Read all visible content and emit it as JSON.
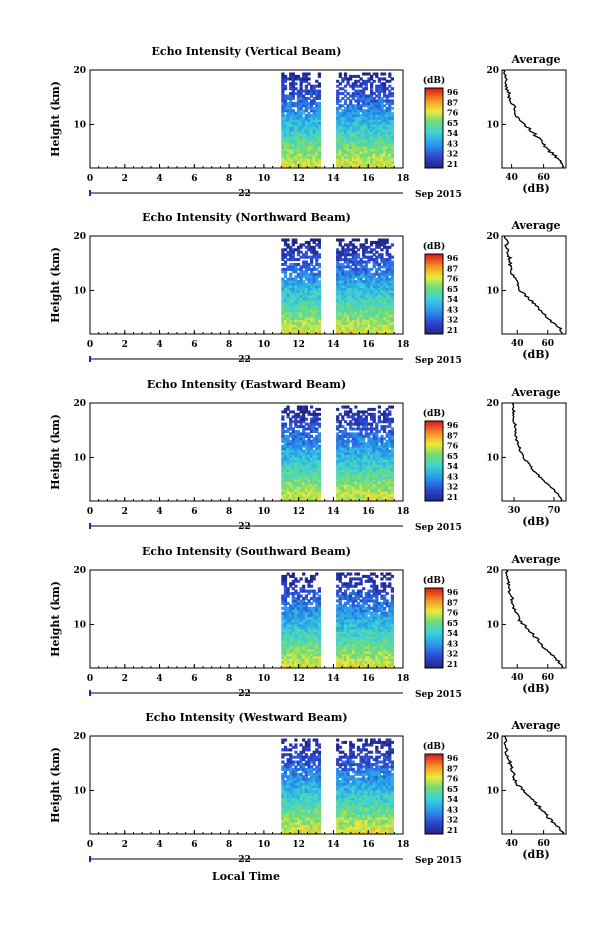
{
  "figure": {
    "xlabel": "Local Time",
    "date_label": "Sep 2015",
    "day_label": "22"
  },
  "chart_data": [
    {
      "type": "heatmap",
      "title": "Echo Intensity (Vertical Beam)",
      "ylabel": "Height (km)",
      "xlim": [
        0,
        18
      ],
      "xticks": [
        "0",
        "2",
        "4",
        "6",
        "8",
        "10",
        "12",
        "14",
        "16",
        "18"
      ],
      "ylim": [
        2,
        20
      ],
      "yticks": [
        "10",
        "20"
      ],
      "data_gaps": [
        [
          0,
          11
        ],
        [
          13.2,
          14.1
        ]
      ],
      "colorbar": {
        "unit": "(dB)",
        "labels": [
          "96",
          "87",
          "76",
          "65",
          "54",
          "43",
          "32",
          "21"
        ]
      },
      "profile": {
        "title": "Average",
        "xlabel": "(dB)",
        "xticklabels": [
          "40",
          "60"
        ],
        "xlim": [
          34,
          74
        ],
        "heights": [
          2,
          3,
          4,
          5,
          6,
          7,
          8,
          9,
          10,
          11,
          12,
          13,
          14,
          15,
          16,
          17,
          18,
          19,
          20
        ],
        "values": [
          72,
          71,
          68,
          64,
          61,
          58,
          55,
          52,
          48,
          44,
          43,
          42,
          40,
          38,
          38,
          37,
          36,
          36,
          35
        ]
      }
    },
    {
      "type": "heatmap",
      "title": "Echo Intensity (Northward Beam)",
      "ylabel": "Height (km)",
      "xlim": [
        0,
        18
      ],
      "xticks": [
        "0",
        "2",
        "4",
        "6",
        "8",
        "10",
        "12",
        "14",
        "16",
        "18"
      ],
      "ylim": [
        2,
        20
      ],
      "yticks": [
        "10",
        "20"
      ],
      "data_gaps": [
        [
          0,
          11
        ],
        [
          13.2,
          14.1
        ]
      ],
      "colorbar": {
        "unit": "(dB)",
        "labels": [
          "96",
          "87",
          "76",
          "65",
          "54",
          "43",
          "32",
          "21"
        ]
      },
      "profile": {
        "title": "Average",
        "xlabel": "(dB)",
        "xticklabels": [
          "40",
          "60"
        ],
        "xlim": [
          30,
          72
        ],
        "heights": [
          2,
          3,
          4,
          5,
          6,
          7,
          8,
          9,
          10,
          11,
          12,
          13,
          14,
          15,
          16,
          17,
          18,
          19,
          20
        ],
        "values": [
          70,
          68,
          64,
          60,
          56,
          53,
          50,
          46,
          42,
          40,
          39,
          37,
          36,
          35,
          35,
          34,
          33,
          33,
          32
        ]
      }
    },
    {
      "type": "heatmap",
      "title": "Echo Intensity (Eastward Beam)",
      "ylabel": "Height (km)",
      "xlim": [
        0,
        18
      ],
      "xticks": [
        "0",
        "2",
        "4",
        "6",
        "8",
        "10",
        "12",
        "14",
        "16",
        "18"
      ],
      "ylim": [
        2,
        20
      ],
      "yticks": [
        "10",
        "20"
      ],
      "data_gaps": [
        [
          0,
          11
        ],
        [
          13.2,
          14.1
        ]
      ],
      "colorbar": {
        "unit": "(dB)",
        "labels": [
          "96",
          "87",
          "76",
          "65",
          "54",
          "43",
          "32",
          "21"
        ]
      },
      "profile": {
        "title": "Average",
        "xlabel": "(dB)",
        "xticklabels": [
          "30",
          "70"
        ],
        "xlim": [
          18,
          82
        ],
        "heights": [
          2,
          3,
          4,
          5,
          6,
          7,
          8,
          9,
          10,
          11,
          12,
          13,
          14,
          15,
          16,
          17,
          18,
          19,
          20
        ],
        "values": [
          78,
          75,
          70,
          64,
          58,
          53,
          48,
          44,
          40,
          37,
          35,
          33,
          32,
          31,
          31,
          30,
          30,
          29,
          28
        ]
      }
    },
    {
      "type": "heatmap",
      "title": "Echo Intensity (Southward Beam)",
      "ylabel": "Height (km)",
      "xlim": [
        0,
        18
      ],
      "xticks": [
        "0",
        "2",
        "4",
        "6",
        "8",
        "10",
        "12",
        "14",
        "16",
        "18"
      ],
      "ylim": [
        2,
        20
      ],
      "yticks": [
        "10",
        "20"
      ],
      "data_gaps": [
        [
          0,
          11
        ],
        [
          13.2,
          14.1
        ]
      ],
      "colorbar": {
        "unit": "(dB)",
        "labels": [
          "96",
          "87",
          "76",
          "65",
          "54",
          "43",
          "32",
          "21"
        ]
      },
      "profile": {
        "title": "Average",
        "xlabel": "(dB)",
        "xticklabels": [
          "40",
          "60"
        ],
        "xlim": [
          30,
          72
        ],
        "heights": [
          2,
          3,
          4,
          5,
          6,
          7,
          8,
          9,
          10,
          11,
          12,
          13,
          14,
          15,
          16,
          17,
          18,
          19,
          20
        ],
        "values": [
          70,
          68,
          65,
          61,
          57,
          54,
          51,
          48,
          44,
          41,
          40,
          38,
          37,
          36,
          35,
          35,
          34,
          33,
          33
        ]
      }
    },
    {
      "type": "heatmap",
      "title": "Echo Intensity (Westward Beam)",
      "ylabel": "Height (km)",
      "xlim": [
        0,
        18
      ],
      "xticks": [
        "0",
        "2",
        "4",
        "6",
        "8",
        "10",
        "12",
        "14",
        "16",
        "18"
      ],
      "ylim": [
        2,
        20
      ],
      "yticks": [
        "10",
        "20"
      ],
      "data_gaps": [
        [
          0,
          11
        ],
        [
          13.2,
          14.1
        ]
      ],
      "colorbar": {
        "unit": "(dB)",
        "labels": [
          "96",
          "87",
          "76",
          "65",
          "54",
          "43",
          "32",
          "21"
        ]
      },
      "profile": {
        "title": "Average",
        "xlabel": "(dB)",
        "xticklabels": [
          "40",
          "60"
        ],
        "xlim": [
          34,
          74
        ],
        "heights": [
          2,
          3,
          4,
          5,
          6,
          7,
          8,
          9,
          10,
          11,
          12,
          13,
          14,
          15,
          16,
          17,
          18,
          19,
          20
        ],
        "values": [
          72,
          70,
          67,
          63,
          60,
          57,
          54,
          51,
          47,
          44,
          42,
          41,
          40,
          39,
          38,
          37,
          37,
          36,
          35
        ]
      }
    }
  ]
}
